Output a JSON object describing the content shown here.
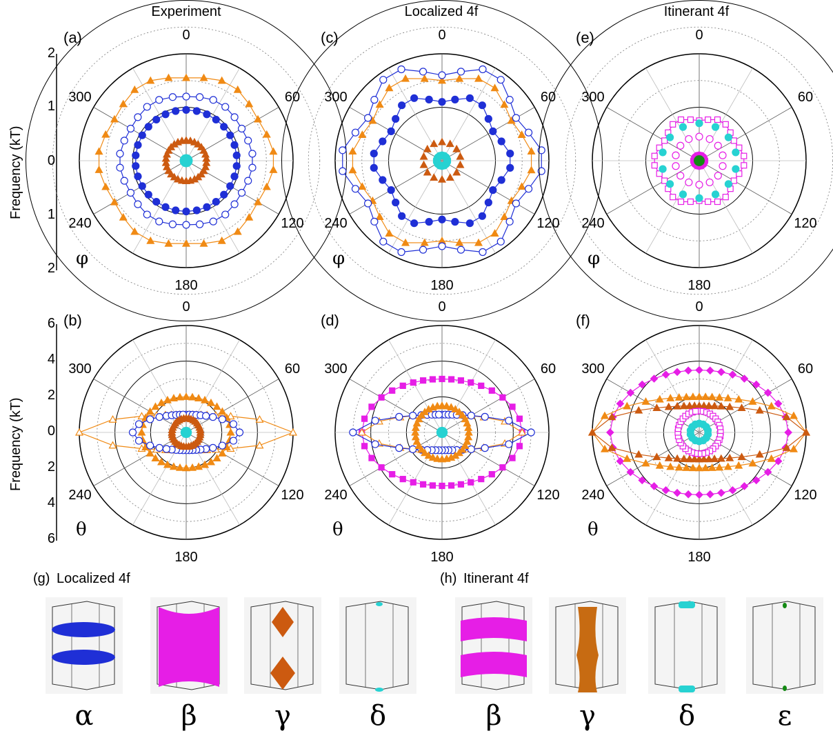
{
  "columns": [
    "Experiment",
    "Localized 4f",
    "Itinerant 4f"
  ],
  "panel_letters": [
    "(a)",
    "(b)",
    "(c)",
    "(d)",
    "(e)",
    "(f)",
    "(g)",
    "(h)"
  ],
  "angle_ticks": [
    "0",
    "60",
    "120",
    "180",
    "240",
    "300"
  ],
  "angle_symbols": {
    "top_row": "φ",
    "bottom_row": "θ"
  },
  "y_axis_label": "Frequency (kT)",
  "top_row_ticks": [
    "2",
    "1",
    "0",
    "1",
    "2"
  ],
  "bottom_row_ticks": [
    "6",
    "4",
    "2",
    "0",
    "2",
    "4",
    "6"
  ],
  "fs_sections": {
    "localized_title": "Localized 4f",
    "itinerant_title": "Itinerant 4f",
    "localized_labels": [
      "α",
      "β",
      "γ",
      "δ"
    ],
    "itinerant_labels": [
      "β",
      "γ",
      "δ",
      "ε"
    ]
  },
  "colors": {
    "blue": "#1f2fd6",
    "orange": "#f08a14",
    "brown": "#cc5a10",
    "cyan": "#27d2d2",
    "magenta": "#e61ee6",
    "green": "#148a14"
  },
  "chart_data": [
    {
      "type": "scatter",
      "panel": "(a)",
      "angle": "φ",
      "rmax": 2,
      "series": [
        {
          "color": "orange",
          "marker": "triangle",
          "values": [
            1.65,
            1.55,
            1.6,
            1.55,
            1.65,
            1.55
          ]
        },
        {
          "color": "blue",
          "marker": "open-circle",
          "values": [
            1.25,
            1.2,
            1.25,
            1.2,
            1.25,
            1.2
          ]
        },
        {
          "color": "blue",
          "marker": "filled-circle",
          "values": [
            0.95,
            0.95,
            0.95,
            0.95,
            0.95,
            0.95
          ]
        },
        {
          "color": "brown",
          "marker": "triangle",
          "values": [
            0.38,
            0.38,
            0.38
          ]
        },
        {
          "color": "cyan",
          "marker": "filled-circle",
          "values": [
            0.05
          ]
        }
      ]
    },
    {
      "type": "scatter",
      "panel": "(b)",
      "angle": "θ",
      "rmax": 6,
      "series": [
        {
          "color": "orange",
          "marker": "open-triangle",
          "values": [
            6,
            1
          ]
        },
        {
          "color": "orange",
          "marker": "triangle",
          "values": [
            2.5,
            2
          ]
        },
        {
          "color": "blue",
          "marker": "open-circle",
          "values": [
            3,
            1
          ]
        },
        {
          "color": "brown",
          "marker": "triangle",
          "values": [
            0.8,
            0.8
          ]
        },
        {
          "color": "cyan",
          "marker": "filled-circle",
          "values": [
            0.1
          ]
        }
      ]
    },
    {
      "type": "scatter",
      "panel": "(c)",
      "angle": "φ",
      "rmax": 2,
      "series": [
        {
          "color": "orange",
          "marker": "triangle",
          "values": [
            1.7,
            1.5
          ]
        },
        {
          "color": "blue",
          "marker": "open-circle",
          "values": [
            1.9,
            1.6
          ]
        },
        {
          "color": "blue",
          "marker": "filled-circle",
          "values": [
            1.3,
            1.1
          ]
        },
        {
          "color": "brown",
          "marker": "triangle",
          "values": [
            0.35
          ]
        },
        {
          "color": "cyan",
          "marker": "filled-circle",
          "values": [
            0.1
          ]
        }
      ]
    },
    {
      "type": "scatter",
      "panel": "(d)",
      "angle": "θ",
      "rmax": 6,
      "series": [
        {
          "color": "magenta",
          "marker": "square",
          "values": [
            4.5,
            3
          ]
        },
        {
          "color": "orange",
          "marker": "open-triangle",
          "values": [
            4.5,
            1
          ]
        },
        {
          "color": "blue",
          "marker": "open-circle",
          "values": [
            5,
            1
          ]
        },
        {
          "color": "orange",
          "marker": "triangle",
          "values": [
            1.5,
            1.5
          ]
        },
        {
          "color": "cyan",
          "marker": "filled-circle",
          "values": [
            0.1
          ]
        }
      ]
    },
    {
      "type": "scatter",
      "panel": "(e)",
      "angle": "φ",
      "rmax": 2,
      "series": [
        {
          "color": "magenta",
          "marker": "open-square",
          "values": [
            0.85,
            0.75
          ]
        },
        {
          "color": "cyan",
          "marker": "filled-circle",
          "values": [
            0.7
          ]
        },
        {
          "color": "magenta",
          "marker": "open-circle",
          "values": [
            0.45
          ]
        },
        {
          "color": "magenta",
          "marker": "filled-circle",
          "values": [
            0.1
          ]
        },
        {
          "color": "green",
          "marker": "filled-circle",
          "values": [
            0.03
          ]
        }
      ]
    },
    {
      "type": "scatter",
      "panel": "(f)",
      "angle": "θ",
      "rmax": 6,
      "series": [
        {
          "color": "magenta",
          "marker": "diamond",
          "values": [
            5,
            3.5
          ]
        },
        {
          "color": "orange",
          "marker": "triangle",
          "values": [
            6,
            2
          ]
        },
        {
          "color": "brown",
          "marker": "triangle",
          "values": [
            6,
            1.5
          ]
        },
        {
          "color": "magenta",
          "marker": "open-square",
          "values": [
            1.2,
            1.2
          ]
        },
        {
          "color": "cyan",
          "marker": "filled-circle",
          "values": [
            0.5
          ]
        }
      ]
    }
  ]
}
